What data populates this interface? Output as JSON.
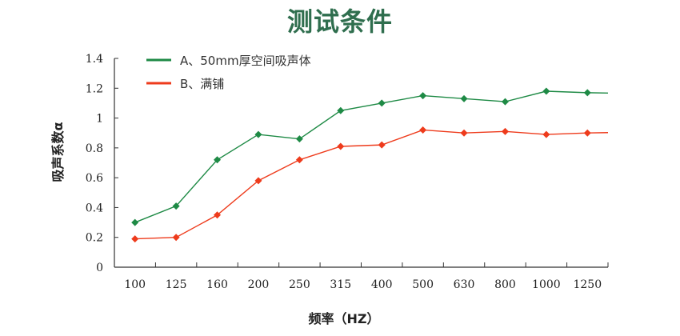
{
  "title": "测试条件",
  "chart_data": {
    "type": "line",
    "title": "测试条件",
    "xlabel": "频率（HZ）",
    "ylabel": "吸声系数α",
    "categories": [
      "100",
      "125",
      "160",
      "200",
      "250",
      "315",
      "400",
      "500",
      "630",
      "800",
      "1000",
      "1250"
    ],
    "ylim": [
      0,
      1.4
    ],
    "yticks": [
      "0",
      "0.2",
      "0.4",
      "0.6",
      "0.8",
      "1",
      "1.2",
      "1.4"
    ],
    "grid": false,
    "legend_position": "top-left",
    "series": [
      {
        "name": "A、50mm厚空间吸声体",
        "color": "#1e8a45",
        "values": [
          0.3,
          0.41,
          0.72,
          0.89,
          0.86,
          1.05,
          1.1,
          1.15,
          1.13,
          1.11,
          1.18,
          1.17
        ]
      },
      {
        "name": "B、满铺",
        "color": "#ee3b1c",
        "values": [
          0.19,
          0.2,
          0.35,
          0.58,
          0.72,
          0.81,
          0.82,
          0.92,
          0.9,
          0.91,
          0.89,
          0.9
        ]
      }
    ]
  }
}
